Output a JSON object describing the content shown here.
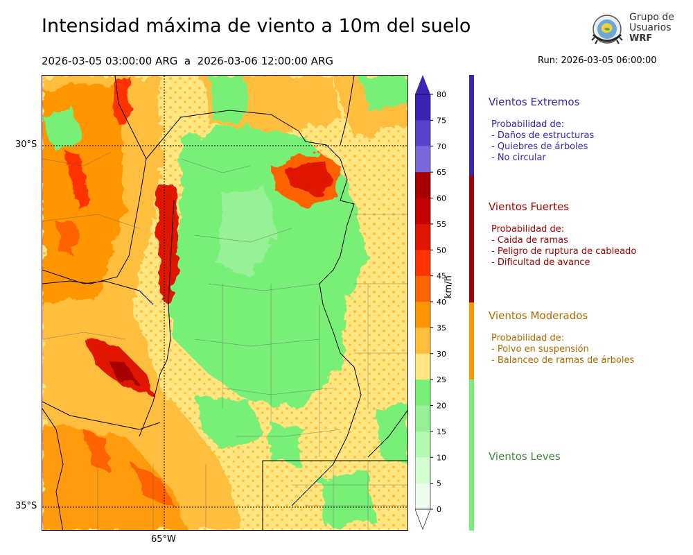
{
  "title": "Intensidad máxima de viento a 10m del suelo",
  "valid_period": "2026-03-05 03:00:00 ARG  a  2026-03-06 12:00:00 ARG",
  "run": "Run: 2026-03-05 06:00:00",
  "logo": {
    "line1": "Grupo de",
    "line2": "Usuarios",
    "line3": "WRF",
    "icon": "globe-icon"
  },
  "map": {
    "lat_labels": [
      "30°S",
      "35°S"
    ],
    "lon_labels": [
      "65°W"
    ],
    "gridlines": "dotted"
  },
  "colorbar": {
    "unit": "km/h",
    "ticks": [
      "80",
      "75",
      "70",
      "65",
      "60",
      "55",
      "50",
      "45",
      "40",
      "35",
      "30",
      "25",
      "20",
      "15",
      "10",
      "5",
      "0"
    ],
    "colors": [
      "#3a24b4",
      "#5844cc",
      "#7868dc",
      "#a60000",
      "#c20000",
      "#e01400",
      "#ff3200",
      "#ff6400",
      "#ff9600",
      "#ffbe3c",
      "#ffe680",
      "#78f078",
      "#96f096",
      "#b4f8b4",
      "#d2fcd2",
      "#eefcee"
    ]
  },
  "categories": [
    {
      "name": "Vientos Extremos",
      "color": "#3a24b4",
      "desc": [
        "Probabilidad de:",
        "- Daños de estructuras",
        "- Quiebres de árboles",
        "- No circular"
      ]
    },
    {
      "name": "Vientos Fuertes",
      "color": "#a60000",
      "desc": [
        "Probabilidad de:",
        "- Caida de ramas",
        "- Peligro de ruptura de cableado",
        "- Dificultad de avance"
      ]
    },
    {
      "name": "Vientos Moderados",
      "color": "#b06a00",
      "desc": [
        "Probabilidad de:",
        "- Polvo en suspensión",
        "- Balanceo de ramas de árboles"
      ]
    },
    {
      "name": "Vientos Leves",
      "color": "#3a8a3a",
      "desc": []
    }
  ]
}
